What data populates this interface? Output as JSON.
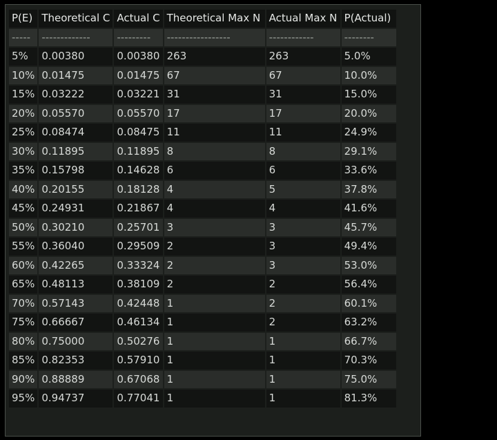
{
  "table": {
    "headers": [
      "P(E)",
      "Theoretical C",
      "Actual C",
      "Theoretical Max N",
      "Actual Max N",
      "P(Actual)"
    ],
    "separators": [
      "-----",
      "-------------",
      "---------",
      "-----------------",
      "------------",
      "--------"
    ],
    "rows": [
      [
        "5%",
        "0.00380",
        "0.00380",
        "263",
        "263",
        "5.0%"
      ],
      [
        "10%",
        "0.01475",
        "0.01475",
        "67",
        "67",
        "10.0%"
      ],
      [
        "15%",
        "0.03222",
        "0.03221",
        "31",
        "31",
        "15.0%"
      ],
      [
        "20%",
        "0.05570",
        "0.05570",
        "17",
        "17",
        "20.0%"
      ],
      [
        "25%",
        "0.08474",
        "0.08475",
        "11",
        "11",
        "24.9%"
      ],
      [
        "30%",
        "0.11895",
        "0.11895",
        "8",
        "8",
        "29.1%"
      ],
      [
        "35%",
        "0.15798",
        "0.14628",
        "6",
        "6",
        "33.6%"
      ],
      [
        "40%",
        "0.20155",
        "0.18128",
        "4",
        "5",
        "37.8%"
      ],
      [
        "45%",
        "0.24931",
        "0.21867",
        "4",
        "4",
        "41.6%"
      ],
      [
        "50%",
        "0.30210",
        "0.25701",
        "3",
        "3",
        "45.7%"
      ],
      [
        "55%",
        "0.36040",
        "0.29509",
        "2",
        "3",
        "49.4%"
      ],
      [
        "60%",
        "0.42265",
        "0.33324",
        "2",
        "3",
        "53.0%"
      ],
      [
        "65%",
        "0.48113",
        "0.38109",
        "2",
        "2",
        "56.4%"
      ],
      [
        "70%",
        "0.57143",
        "0.42448",
        "1",
        "2",
        "60.1%"
      ],
      [
        "75%",
        "0.66667",
        "0.46134",
        "1",
        "2",
        "63.2%"
      ],
      [
        "80%",
        "0.75000",
        "0.50276",
        "1",
        "1",
        "66.7%"
      ],
      [
        "85%",
        "0.82353",
        "0.57910",
        "1",
        "1",
        "70.3%"
      ],
      [
        "90%",
        "0.88889",
        "0.67068",
        "1",
        "1",
        "75.0%"
      ],
      [
        "95%",
        "0.94737",
        "0.77041",
        "1",
        "1",
        "81.3%"
      ]
    ]
  },
  "colors": {
    "page_background": "#000000",
    "panel_background": "#1c1f1c",
    "row_dark": "#121412",
    "row_light": "#2a2d2a",
    "text": "#d7dad7"
  }
}
